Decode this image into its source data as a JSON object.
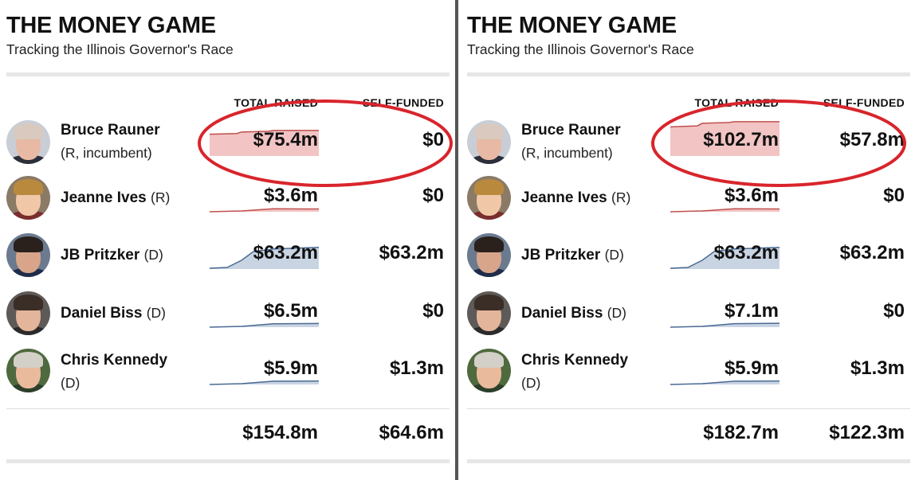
{
  "colors": {
    "republican_fill": "#f2c4c4",
    "republican_line": "#c0504d",
    "democrat_fill": "#c9d4e3",
    "democrat_line": "#4a6a94",
    "annotation": "#d9242b",
    "divider": "#555555"
  },
  "chart_data": [
    {
      "type": "table",
      "title": "THE MONEY GAME",
      "subtitle": "Tracking the Illinois Governor's Race",
      "columns": [
        "TOTAL RAISED",
        "SELF-FUNDED"
      ],
      "rows": [
        {
          "name": "Bruce Rauner",
          "party": "(R, incumbent)",
          "raised": "$75.4m",
          "self_funded": "$0",
          "raised_value": 75.4,
          "party_code": "R",
          "two_line": true,
          "highlight": true
        },
        {
          "name": "Jeanne Ives",
          "party": "(R)",
          "raised": "$3.6m",
          "self_funded": "$0",
          "raised_value": 3.6,
          "party_code": "R",
          "two_line": false,
          "highlight": false
        },
        {
          "name": "JB Pritzker",
          "party": "(D)",
          "raised": "$63.2m",
          "self_funded": "$63.2m",
          "raised_value": 63.2,
          "party_code": "D",
          "two_line": false,
          "highlight": false
        },
        {
          "name": "Daniel Biss",
          "party": "(D)",
          "raised": "$6.5m",
          "self_funded": "$0",
          "raised_value": 6.5,
          "party_code": "D",
          "two_line": false,
          "highlight": false
        },
        {
          "name": "Chris Kennedy",
          "party": "(D)",
          "raised": "$5.9m",
          "self_funded": "$1.3m",
          "raised_value": 5.9,
          "party_code": "D",
          "two_line": true,
          "highlight": false
        }
      ],
      "totals": {
        "raised": "$154.8m",
        "self_funded": "$64.6m"
      }
    },
    {
      "type": "table",
      "title": "THE MONEY GAME",
      "subtitle": "Tracking the Illinois Governor's Race",
      "columns": [
        "TOTAL RAISED",
        "SELF-FUNDED"
      ],
      "rows": [
        {
          "name": "Bruce Rauner",
          "party": "(R, incumbent)",
          "raised": "$102.7m",
          "self_funded": "$57.8m",
          "raised_value": 102.7,
          "party_code": "R",
          "two_line": true,
          "highlight": true
        },
        {
          "name": "Jeanne Ives",
          "party": "(R)",
          "raised": "$3.6m",
          "self_funded": "$0",
          "raised_value": 3.6,
          "party_code": "R",
          "two_line": false,
          "highlight": false
        },
        {
          "name": "JB Pritzker",
          "party": "(D)",
          "raised": "$63.2m",
          "self_funded": "$63.2m",
          "raised_value": 63.2,
          "party_code": "D",
          "two_line": false,
          "highlight": false
        },
        {
          "name": "Daniel Biss",
          "party": "(D)",
          "raised": "$7.1m",
          "self_funded": "$0",
          "raised_value": 7.1,
          "party_code": "D",
          "two_line": false,
          "highlight": false
        },
        {
          "name": "Chris Kennedy",
          "party": "(D)",
          "raised": "$5.9m",
          "self_funded": "$1.3m",
          "raised_value": 5.9,
          "party_code": "D",
          "two_line": true,
          "highlight": false
        }
      ],
      "totals": {
        "raised": "$182.7m",
        "self_funded": "$122.3m"
      }
    }
  ],
  "avatars": [
    {
      "icon": "bald-man-portrait-icon",
      "skin": "#e8b9a4",
      "hair": "#d9c9bf",
      "shirt": "#2a2f3a",
      "bg": "#c9ced6"
    },
    {
      "icon": "blonde-woman-portrait-icon",
      "skin": "#f0c8a8",
      "hair": "#b98a3e",
      "shirt": "#7b2d2d",
      "bg": "#8a7a66"
    },
    {
      "icon": "dark-haired-man-portrait-icon",
      "skin": "#d8a58a",
      "hair": "#2a211c",
      "shirt": "#1f2c4a",
      "bg": "#6b7a8f"
    },
    {
      "icon": "dark-haired-man-portrait-icon",
      "skin": "#e3b59a",
      "hair": "#3a2e26",
      "shirt": "#2b2b2b",
      "bg": "#5e5a58"
    },
    {
      "icon": "grey-haired-man-portrait-icon",
      "skin": "#e9bb9c",
      "hair": "#d3d0c8",
      "shirt": "#2c3f2a",
      "bg": "#4f6a3e"
    }
  ]
}
